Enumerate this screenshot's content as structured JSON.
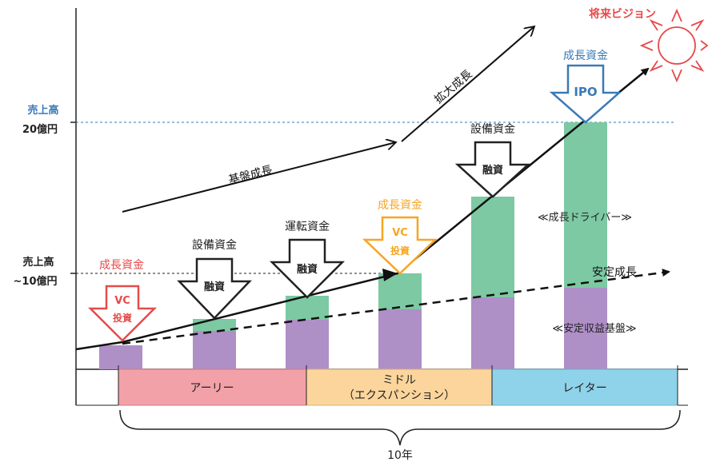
{
  "y_labels": {
    "high_line1": "売上高",
    "high_line2": "20億円",
    "mid_line1": "売上高",
    "mid_line2": "~10億円"
  },
  "future_vision": "将来ビジョン",
  "growth_lines": {
    "expansion": "拡大成長",
    "base": "基盤成長",
    "stable": "安定成長"
  },
  "bar_notes": {
    "growth_driver": "≪成長ドライバー≫",
    "stable_base": "≪安定収益基盤≫"
  },
  "funding": [
    {
      "label": "成長資金",
      "arrow_text_1": "VC",
      "arrow_text_2": "投資",
      "style": "vc-red"
    },
    {
      "label": "設備資金",
      "arrow_text_1": "融資",
      "arrow_text_2": "",
      "style": "loan"
    },
    {
      "label": "運転資金",
      "arrow_text_1": "融資",
      "arrow_text_2": "",
      "style": "loan"
    },
    {
      "label": "成長資金",
      "arrow_text_1": "VC",
      "arrow_text_2": "投資",
      "style": "vc-orange"
    },
    {
      "label": "設備資金",
      "arrow_text_1": "融資",
      "arrow_text_2": "",
      "style": "loan"
    },
    {
      "label": "成長資金",
      "arrow_text_1": "IPO",
      "arrow_text_2": "",
      "style": "ipo"
    }
  ],
  "stages": [
    {
      "label": "アーリー",
      "line2": "",
      "color": "#f2a1a8"
    },
    {
      "label": "ミドル",
      "line2": "（エクスパンション）",
      "color": "#fbd59b"
    },
    {
      "label": "レイター",
      "line2": "",
      "color": "#8fd3ea"
    }
  ],
  "period": "10年",
  "colors": {
    "growth_part": "#7cc9a3",
    "base_part": "#ae8fc6",
    "red": "#e74a4a",
    "orange": "#f5a623",
    "blue": "#3a7ab8",
    "text": "#222222"
  }
}
